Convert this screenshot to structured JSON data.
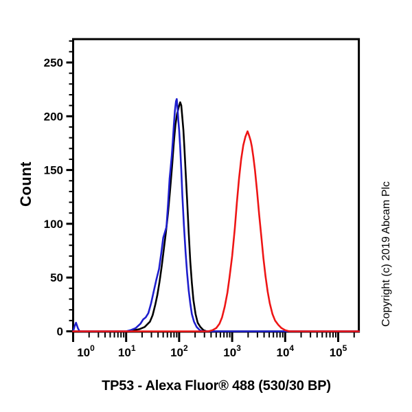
{
  "figure": {
    "background": "#ffffff",
    "copyright": "Copyright (c) 2019 Abcam Plc"
  },
  "chart_data": {
    "type": "line",
    "subtype": "flow-cytometry-overlay-histogram",
    "xlabel": "TP53 - Alexa Fluor® 488 (530/30 BP)",
    "ylabel": "Count",
    "x_scale": "log10",
    "xlim_log": [
      0,
      5.39
    ],
    "x_decades": [
      0,
      1,
      2,
      3,
      4,
      5
    ],
    "x_tick_labels": [
      {
        "base": "10",
        "exp": "0"
      },
      {
        "base": "10",
        "exp": "1"
      },
      {
        "base": "10",
        "exp": "2"
      },
      {
        "base": "10",
        "exp": "3"
      },
      {
        "base": "10",
        "exp": "4"
      },
      {
        "base": "10",
        "exp": "5"
      }
    ],
    "x_label_dx": [
      18.5,
      1,
      0,
      0,
      0,
      0
    ],
    "ylim": [
      0,
      272
    ],
    "y_major_ticks": [
      0,
      50,
      100,
      150,
      200,
      250
    ],
    "y_minor_step": 10,
    "grid": false,
    "legend": "none",
    "frame_color": "#000000",
    "series": [
      {
        "name": "curve-black",
        "color": "#000000",
        "points": [
          [
            0.0,
            0
          ],
          [
            1.05,
            0
          ],
          [
            1.15,
            1
          ],
          [
            1.25,
            2
          ],
          [
            1.35,
            4
          ],
          [
            1.45,
            9
          ],
          [
            1.5,
            15
          ],
          [
            1.55,
            25
          ],
          [
            1.59,
            34
          ],
          [
            1.63,
            46
          ],
          [
            1.67,
            60
          ],
          [
            1.71,
            76
          ],
          [
            1.75,
            92
          ],
          [
            1.79,
            110
          ],
          [
            1.83,
            132
          ],
          [
            1.87,
            156
          ],
          [
            1.9,
            176
          ],
          [
            1.93,
            192
          ],
          [
            1.96,
            202
          ],
          [
            1.99,
            208
          ],
          [
            2.02,
            213
          ],
          [
            2.04,
            210
          ],
          [
            2.06,
            199
          ],
          [
            2.08,
            187
          ],
          [
            2.1,
            170
          ],
          [
            2.12,
            150
          ],
          [
            2.15,
            122
          ],
          [
            2.18,
            92
          ],
          [
            2.21,
            65
          ],
          [
            2.24,
            45
          ],
          [
            2.27,
            29
          ],
          [
            2.31,
            16
          ],
          [
            2.35,
            8
          ],
          [
            2.4,
            4
          ],
          [
            2.46,
            1
          ],
          [
            2.52,
            0
          ],
          [
            5.39,
            0
          ]
        ]
      },
      {
        "name": "curve-blue",
        "color": "#1e1ecd",
        "points": [
          [
            0.0,
            0
          ],
          [
            0.03,
            5
          ],
          [
            0.055,
            8
          ],
          [
            0.09,
            3
          ],
          [
            0.12,
            0
          ],
          [
            0.6,
            0
          ],
          [
            1.0,
            0
          ],
          [
            1.08,
            1
          ],
          [
            1.18,
            3
          ],
          [
            1.27,
            7
          ],
          [
            1.32,
            11
          ],
          [
            1.37,
            13
          ],
          [
            1.42,
            17
          ],
          [
            1.47,
            26
          ],
          [
            1.52,
            37
          ],
          [
            1.57,
            48
          ],
          [
            1.62,
            58
          ],
          [
            1.66,
            72
          ],
          [
            1.7,
            87
          ],
          [
            1.73,
            92
          ],
          [
            1.76,
            97
          ],
          [
            1.79,
            118
          ],
          [
            1.82,
            142
          ],
          [
            1.84,
            152
          ],
          [
            1.86,
            163
          ],
          [
            1.88,
            176
          ],
          [
            1.9,
            192
          ],
          [
            1.92,
            205
          ],
          [
            1.94,
            214
          ],
          [
            1.955,
            216
          ],
          [
            1.97,
            207
          ],
          [
            1.985,
            196
          ],
          [
            2.0,
            187
          ],
          [
            2.02,
            171
          ],
          [
            2.04,
            150
          ],
          [
            2.06,
            127
          ],
          [
            2.09,
            99
          ],
          [
            2.12,
            74
          ],
          [
            2.15,
            54
          ],
          [
            2.18,
            38
          ],
          [
            2.21,
            26
          ],
          [
            2.24,
            16
          ],
          [
            2.28,
            9
          ],
          [
            2.33,
            4
          ],
          [
            2.39,
            1
          ],
          [
            2.45,
            0
          ],
          [
            5.39,
            0
          ]
        ]
      },
      {
        "name": "curve-red",
        "color": "#ee1515",
        "points": [
          [
            0.0,
            0
          ],
          [
            2.55,
            0
          ],
          [
            2.63,
            1
          ],
          [
            2.7,
            3
          ],
          [
            2.76,
            7
          ],
          [
            2.81,
            13
          ],
          [
            2.86,
            23
          ],
          [
            2.91,
            36
          ],
          [
            2.95,
            50
          ],
          [
            3.0,
            70
          ],
          [
            3.05,
            96
          ],
          [
            3.09,
            120
          ],
          [
            3.13,
            142
          ],
          [
            3.17,
            160
          ],
          [
            3.21,
            173
          ],
          [
            3.25,
            181
          ],
          [
            3.29,
            186
          ],
          [
            3.32,
            182
          ],
          [
            3.35,
            177
          ],
          [
            3.37,
            172
          ],
          [
            3.4,
            162
          ],
          [
            3.43,
            150
          ],
          [
            3.47,
            130
          ],
          [
            3.51,
            108
          ],
          [
            3.55,
            88
          ],
          [
            3.59,
            68
          ],
          [
            3.63,
            51
          ],
          [
            3.67,
            37
          ],
          [
            3.71,
            26
          ],
          [
            3.76,
            16
          ],
          [
            3.81,
            10
          ],
          [
            3.87,
            6
          ],
          [
            3.93,
            3
          ],
          [
            4.0,
            1
          ],
          [
            4.08,
            0
          ],
          [
            5.39,
            0
          ]
        ]
      }
    ]
  }
}
